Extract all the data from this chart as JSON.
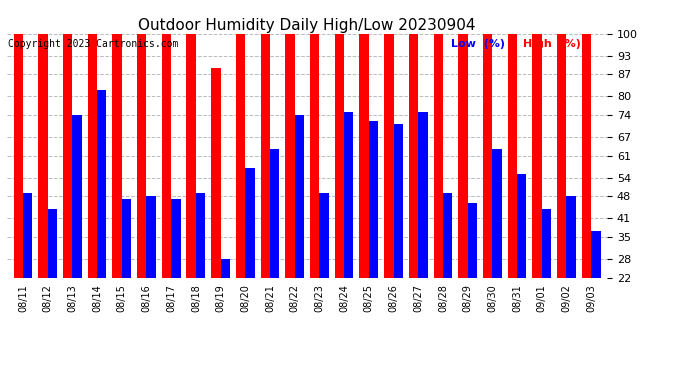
{
  "title": "Outdoor Humidity Daily High/Low 20230904",
  "copyright": "Copyright 2023 Cartronics.com",
  "legend_low": "Low  (%)",
  "legend_high": "High  (%)",
  "dates": [
    "08/11",
    "08/12",
    "08/13",
    "08/14",
    "08/15",
    "08/16",
    "08/17",
    "08/18",
    "08/19",
    "08/20",
    "08/21",
    "08/22",
    "08/23",
    "08/24",
    "08/25",
    "08/26",
    "08/27",
    "08/28",
    "08/29",
    "08/30",
    "08/31",
    "09/01",
    "09/02",
    "09/03"
  ],
  "high": [
    100,
    100,
    100,
    100,
    100,
    100,
    100,
    100,
    89,
    100,
    100,
    100,
    100,
    100,
    100,
    100,
    100,
    100,
    100,
    100,
    100,
    100,
    100,
    100
  ],
  "low": [
    49,
    44,
    74,
    82,
    47,
    48,
    47,
    49,
    28,
    57,
    63,
    74,
    49,
    75,
    72,
    71,
    75,
    49,
    46,
    63,
    55,
    44,
    48,
    37
  ],
  "high_color": "#FF0000",
  "low_color": "#0000FF",
  "bg_color": "#FFFFFF",
  "grid_color": "#BBBBBB",
  "title_color": "#000000",
  "copyright_color": "#000000",
  "legend_low_color": "#0000FF",
  "legend_high_color": "#FF0000",
  "yticks": [
    22,
    28,
    35,
    41,
    48,
    54,
    61,
    67,
    74,
    80,
    87,
    93,
    100
  ],
  "ymin": 22,
  "ymax": 100,
  "title_fontsize": 11,
  "tick_fontsize": 8,
  "xlabel_fontsize": 7,
  "legend_fontsize": 8,
  "copyright_fontsize": 7
}
